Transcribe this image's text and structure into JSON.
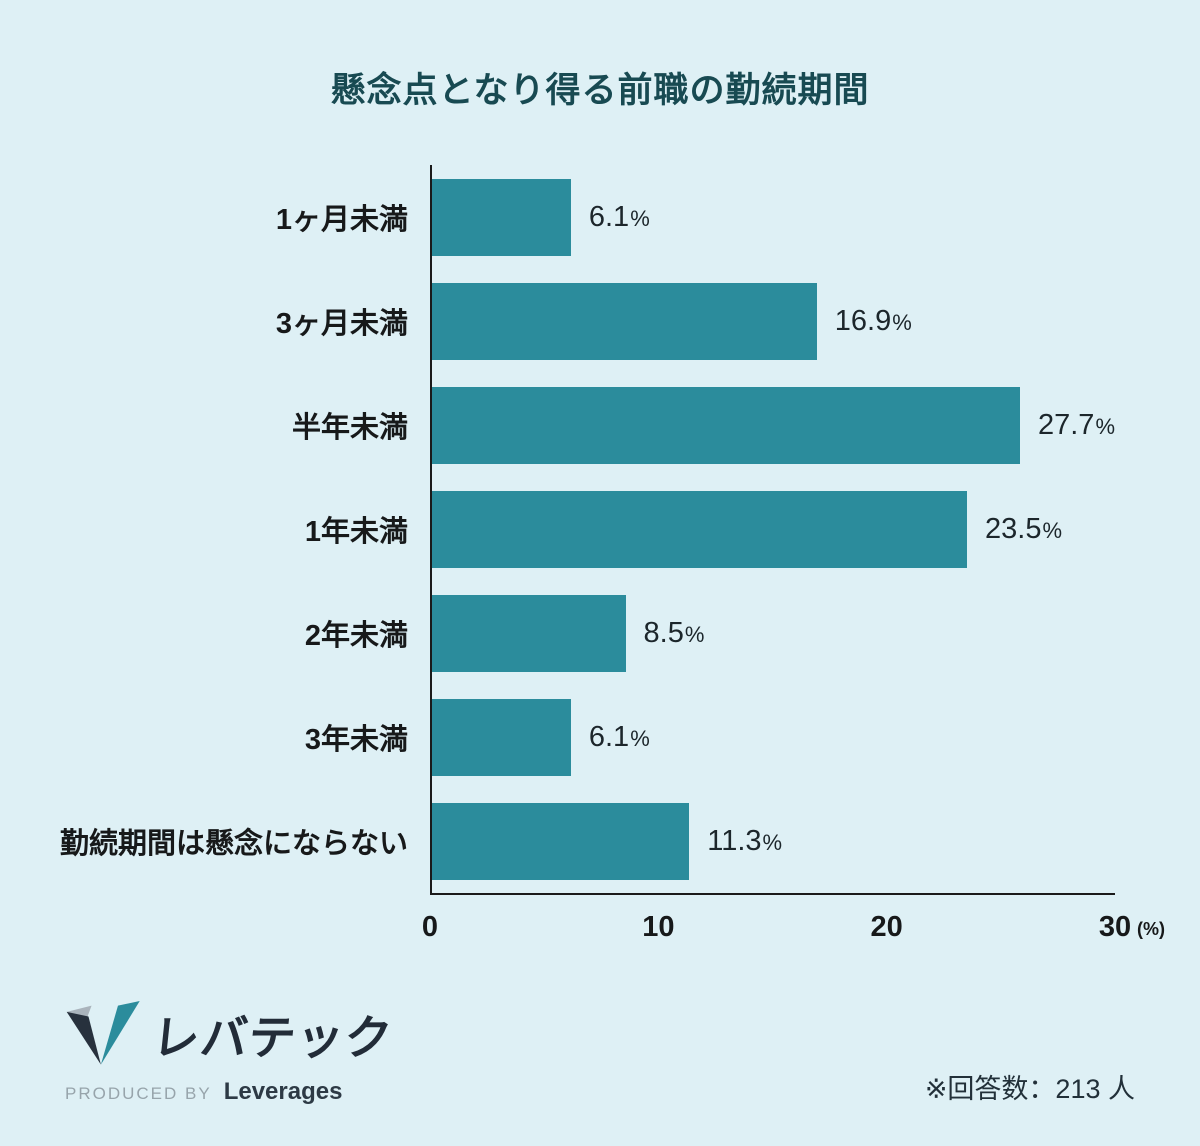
{
  "chart_data": {
    "type": "bar",
    "orientation": "horizontal",
    "title": "懸念点となり得る前職の勤続期間",
    "categories": [
      "1ヶ月未満",
      "3ヶ月未満",
      "半年未満",
      "1年未満",
      "2年未満",
      "3年未満",
      "勤続期間は懸念にならない"
    ],
    "values": [
      6.1,
      16.9,
      27.7,
      23.5,
      8.5,
      6.1,
      11.3
    ],
    "percent_sign": "%",
    "xlim": [
      0,
      30
    ],
    "x_ticks": [
      "0",
      "10",
      "20",
      "30"
    ],
    "x_unit": "(%)",
    "bar_color": "#2b8c9c",
    "background": "#def0f5",
    "legend": "none",
    "grid": "off"
  },
  "footer": {
    "logo_text": "レバテック",
    "produced_by": "PRODUCED BY",
    "company": "Leverages",
    "note": "※回答数：213 人"
  }
}
